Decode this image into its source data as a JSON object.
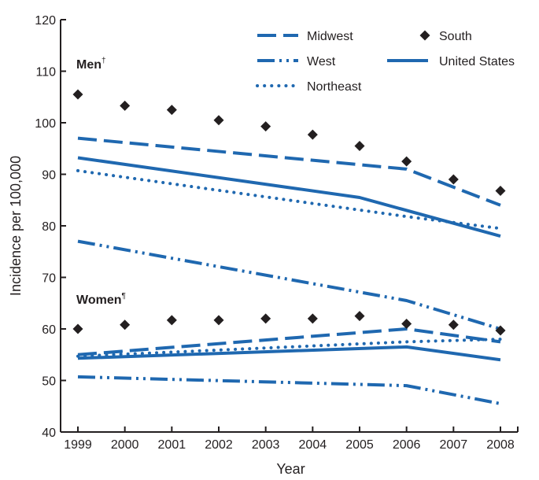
{
  "chart_data": {
    "type": "line",
    "xlabel": "Year",
    "ylabel": "Incidence per 100,000",
    "ylim": [
      40,
      120
    ],
    "yticks": [
      40,
      50,
      60,
      70,
      80,
      90,
      100,
      110,
      120
    ],
    "x": [
      1999,
      2000,
      2001,
      2002,
      2003,
      2004,
      2005,
      2006,
      2007,
      2008
    ],
    "grid": false,
    "legend_position": "top-right",
    "annotations": [
      {
        "text": "Men",
        "sup": "†"
      },
      {
        "text": "Women",
        "sup": "¶"
      }
    ],
    "legend": [
      {
        "label": "Midwest",
        "style": "dash"
      },
      {
        "label": "South",
        "style": "diamond"
      },
      {
        "label": "West",
        "style": "dashdotdot"
      },
      {
        "label": "United States",
        "style": "solid"
      },
      {
        "label": "Northeast",
        "style": "dot"
      }
    ],
    "series": [
      {
        "name": "Midwest",
        "group": "Men",
        "style": "dash",
        "x": [
          1999,
          2006,
          2008
        ],
        "values": [
          97.0,
          91.0,
          84.0
        ]
      },
      {
        "name": "South",
        "group": "Men",
        "style": "diamond",
        "values": [
          105.5,
          103.3,
          102.5,
          100.5,
          99.3,
          97.7,
          95.5,
          92.5,
          89.0,
          86.8
        ]
      },
      {
        "name": "West",
        "group": "Men",
        "style": "dashdotdot",
        "x": [
          1999,
          2006,
          2008
        ],
        "values": [
          77.0,
          65.5,
          60.0
        ]
      },
      {
        "name": "United States",
        "group": "Men",
        "style": "solid",
        "x": [
          1999,
          2005,
          2008
        ],
        "values": [
          93.2,
          85.5,
          78.0
        ]
      },
      {
        "name": "Northeast",
        "group": "Men",
        "style": "dot",
        "x": [
          1999,
          2006,
          2008
        ],
        "values": [
          90.7,
          81.8,
          79.5
        ]
      },
      {
        "name": "Midwest",
        "group": "Women",
        "style": "dash",
        "x": [
          1999,
          2006,
          2008
        ],
        "values": [
          55.0,
          60.0,
          57.5
        ]
      },
      {
        "name": "South",
        "group": "Women",
        "style": "diamond",
        "values": [
          60.0,
          60.8,
          61.7,
          61.7,
          62.0,
          62.0,
          62.5,
          61.0,
          60.8,
          59.7
        ]
      },
      {
        "name": "West",
        "group": "Women",
        "style": "dashdotdot",
        "x": [
          1999,
          2006,
          2008
        ],
        "values": [
          50.7,
          49.0,
          45.5
        ]
      },
      {
        "name": "United States",
        "group": "Women",
        "style": "solid",
        "x": [
          1999,
          2006,
          2008
        ],
        "values": [
          54.3,
          56.5,
          54.0
        ]
      },
      {
        "name": "Northeast",
        "group": "Women",
        "style": "dot",
        "x": [
          1999,
          2006,
          2008
        ],
        "values": [
          54.7,
          57.5,
          58.0
        ]
      }
    ]
  },
  "colors": {
    "line": "#1f68b0",
    "marker": "#231f20",
    "axis": "#231f20"
  }
}
